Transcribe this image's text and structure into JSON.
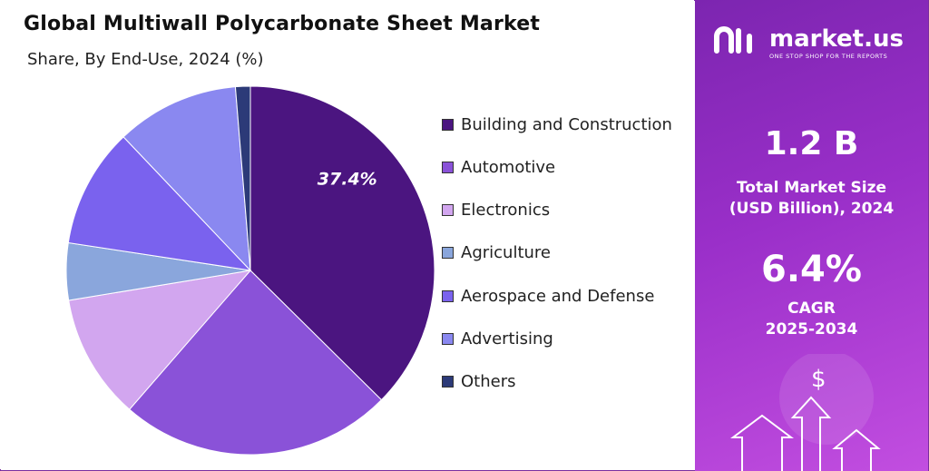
{
  "title": "Global Multiwall Polycarbonate Sheet Market",
  "subtitle": "Share, By End-Use, 2024 (%)",
  "chart_data": {
    "type": "pie",
    "title": "Global Multiwall Polycarbonate Sheet Market",
    "subtitle": "Share, By End-Use, 2024 (%)",
    "categories": [
      "Building and Construction",
      "Automotive",
      "Electronics",
      "Agriculture",
      "Aerospace and Defense",
      "Advertising",
      "Others"
    ],
    "values": [
      37.4,
      24.0,
      11.0,
      5.0,
      10.5,
      10.8,
      1.3
    ],
    "colors": [
      "#4b1580",
      "#8a52d8",
      "#d2a6ef",
      "#8aa6dc",
      "#7a62ee",
      "#8a88f0",
      "#2c3a78"
    ],
    "data_labels": [
      "37.4%",
      "",
      "",
      "",
      "",
      "",
      ""
    ],
    "legend_position": "right"
  },
  "legend": [
    {
      "label": "Building and Construction",
      "color": "#4b1580"
    },
    {
      "label": "Automotive",
      "color": "#8a52d8"
    },
    {
      "label": "Electronics",
      "color": "#d2a6ef"
    },
    {
      "label": "Agriculture",
      "color": "#8aa6dc"
    },
    {
      "label": "Aerospace and Defense",
      "color": "#7a62ee"
    },
    {
      "label": "Advertising",
      "color": "#8a88f0"
    },
    {
      "label": "Others",
      "color": "#2c3a78"
    }
  ],
  "panel": {
    "brand_name": "market.us",
    "tagline": "ONE STOP SHOP FOR THE REPORTS",
    "market_size_value": "1.2 B",
    "market_size_label_1": "Total Market Size",
    "market_size_label_2": "(USD Billion), 2024",
    "cagr_value": "6.4%",
    "cagr_label_1": "CAGR",
    "cagr_label_2": "2025-2034",
    "dollar_sign": "$"
  }
}
